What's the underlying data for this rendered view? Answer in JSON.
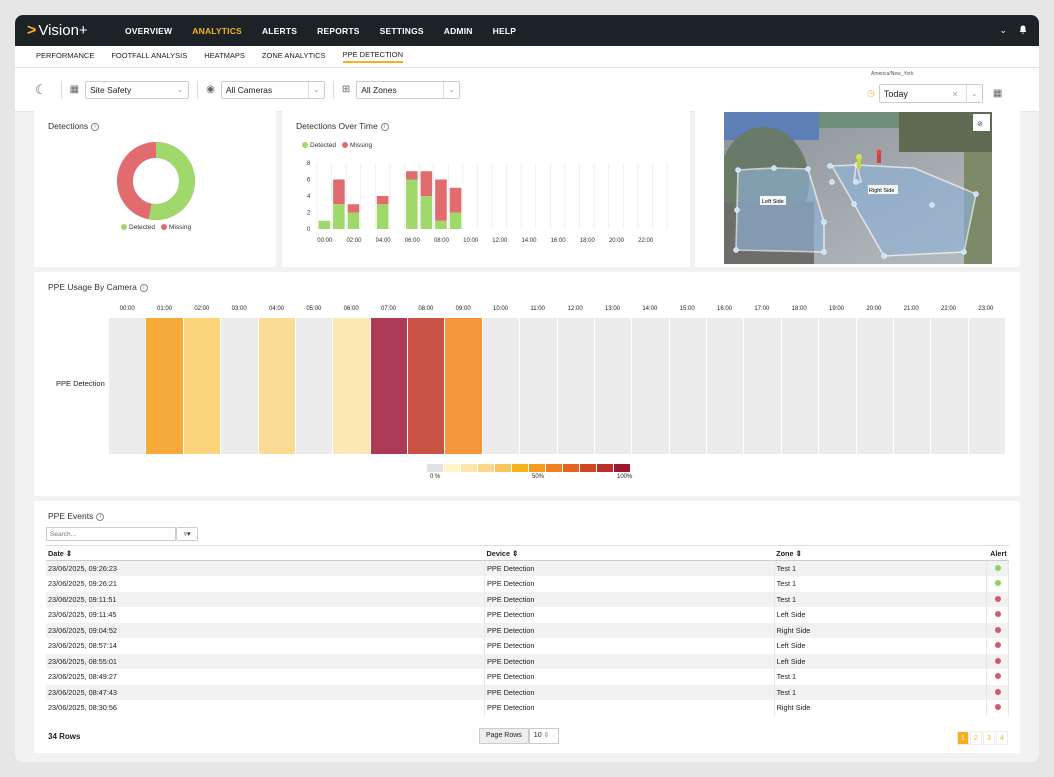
{
  "app": {
    "logo_text": "Vision+"
  },
  "topnav": {
    "items": [
      {
        "label": "OVERVIEW",
        "active": false
      },
      {
        "label": "ANALYTICS",
        "active": true
      },
      {
        "label": "ALERTS",
        "active": false
      },
      {
        "label": "REPORTS",
        "active": false
      },
      {
        "label": "SETTINGS",
        "active": false
      },
      {
        "label": "ADMIN",
        "active": false
      },
      {
        "label": "HELP",
        "active": false
      }
    ],
    "right_icons": [
      "chevron-down-icon",
      "bell-icon"
    ]
  },
  "subnav": {
    "items": [
      {
        "label": "PERFORMANCE",
        "active": false
      },
      {
        "label": "FOOTFALL ANALYSIS",
        "active": false
      },
      {
        "label": "HEATMAPS",
        "active": false
      },
      {
        "label": "ZONE ANALYTICS",
        "active": false
      },
      {
        "label": "PPE DETECTION",
        "active": true
      }
    ]
  },
  "filters": {
    "site": "Site Safety",
    "cameras": "All Cameras",
    "zones": "All Zones",
    "timezone": "America/New_York",
    "date_range": "Today"
  },
  "detections": {
    "title": "Detections",
    "legend": [
      "Detected",
      "Missing"
    ],
    "colors": {
      "detected": "#9fd86b",
      "missing": "#e26b6f"
    },
    "detected_fraction": 0.53
  },
  "over_time": {
    "title": "Detections Over Time",
    "legend": [
      "Detected",
      "Missing"
    ],
    "y_ticks": [
      "8",
      "6",
      "4",
      "2",
      "0"
    ],
    "x_ticks": [
      "00:00",
      "02:00",
      "04:00",
      "06:00",
      "08:00",
      "10:00",
      "12:00",
      "14:00",
      "16:00",
      "18:00",
      "20:00",
      "22:00"
    ]
  },
  "chart_data": {
    "type": "bar",
    "stacked": true,
    "x": [
      0,
      1,
      2,
      4,
      6,
      7,
      8,
      9
    ],
    "series": [
      {
        "name": "Detected",
        "values": [
          1,
          3,
          2,
          3,
          6,
          4,
          1,
          2
        ]
      },
      {
        "name": "Missing",
        "values": [
          0,
          3,
          1,
          1,
          1,
          3,
          5,
          3
        ]
      }
    ],
    "ylim": [
      0,
      8
    ]
  },
  "camera": {
    "zone_left": "Left Side",
    "zone_right": "Right Side",
    "icon": "eye-off-icon"
  },
  "usage": {
    "title": "PPE Usage By Camera",
    "row_label": "PPE Detection",
    "hours": [
      "00:00",
      "01:00",
      "02:00",
      "03:00",
      "04:00",
      "05:00",
      "06:00",
      "07:00",
      "08:00",
      "09:00",
      "10:00",
      "11:00",
      "12:00",
      "13:00",
      "14:00",
      "15:00",
      "16:00",
      "17:00",
      "18:00",
      "19:00",
      "20:00",
      "21:00",
      "22:00",
      "23:00"
    ],
    "colors": [
      "#ececec",
      "#f7a93a",
      "#fbd37b",
      "#ececec",
      "#fbdc95",
      "#ececec",
      "#fce8b5",
      "#ad3a55",
      "#c85243",
      "#f5963c",
      "#ececec",
      "#ececec",
      "#ececec",
      "#ececec",
      "#ececec",
      "#ececec",
      "#ececec",
      "#ececec",
      "#ececec",
      "#ececec",
      "#ececec",
      "#ececec",
      "#ececec",
      "#ececec"
    ],
    "scale_colors": [
      "#e2e2e2",
      "#fff4cc",
      "#fde6ab",
      "#fbd88a",
      "#f9c55e",
      "#f7b21b",
      "#f59b1d",
      "#f0801f",
      "#e4621f",
      "#d1461f",
      "#b9302a",
      "#9a1a2f"
    ],
    "scale_labels": [
      "0 %",
      "50%",
      "100%"
    ]
  },
  "events": {
    "title": "PPE Events",
    "search_placeholder": "Search...",
    "columns": [
      "Date",
      "Device",
      "Zone",
      "Alert"
    ],
    "rows": [
      {
        "date": "23/06/2025, 09:26:23",
        "device": "PPE Detection",
        "zone": "Test 1",
        "alert": "#8ed35b"
      },
      {
        "date": "23/06/2025, 09:26:21",
        "device": "PPE Detection",
        "zone": "Test 1",
        "alert": "#8ed35b"
      },
      {
        "date": "23/06/2025, 09:11:51",
        "device": "PPE Detection",
        "zone": "Test 1",
        "alert": "#d9596a"
      },
      {
        "date": "23/06/2025, 09:11:45",
        "device": "PPE Detection",
        "zone": "Left Side",
        "alert": "#d9596a"
      },
      {
        "date": "23/06/2025, 09:04:52",
        "device": "PPE Detection",
        "zone": "Right Side",
        "alert": "#d9596a"
      },
      {
        "date": "23/06/2025, 08:57:14",
        "device": "PPE Detection",
        "zone": "Left Side",
        "alert": "#d9596a"
      },
      {
        "date": "23/06/2025, 08:55:01",
        "device": "PPE Detection",
        "zone": "Left Side",
        "alert": "#d9596a"
      },
      {
        "date": "23/06/2025, 08:49:27",
        "device": "PPE Detection",
        "zone": "Test 1",
        "alert": "#d9596a"
      },
      {
        "date": "23/06/2025, 08:47:43",
        "device": "PPE Detection",
        "zone": "Test 1",
        "alert": "#d9596a"
      },
      {
        "date": "23/06/2025, 08:30:56",
        "device": "PPE Detection",
        "zone": "Right Side",
        "alert": "#d9596a"
      }
    ],
    "row_count": "34 Rows",
    "page_rows_label": "Page Rows",
    "page_rows_value": "10",
    "pages": [
      "1",
      "2",
      "3",
      "4"
    ],
    "current_page": "1"
  }
}
